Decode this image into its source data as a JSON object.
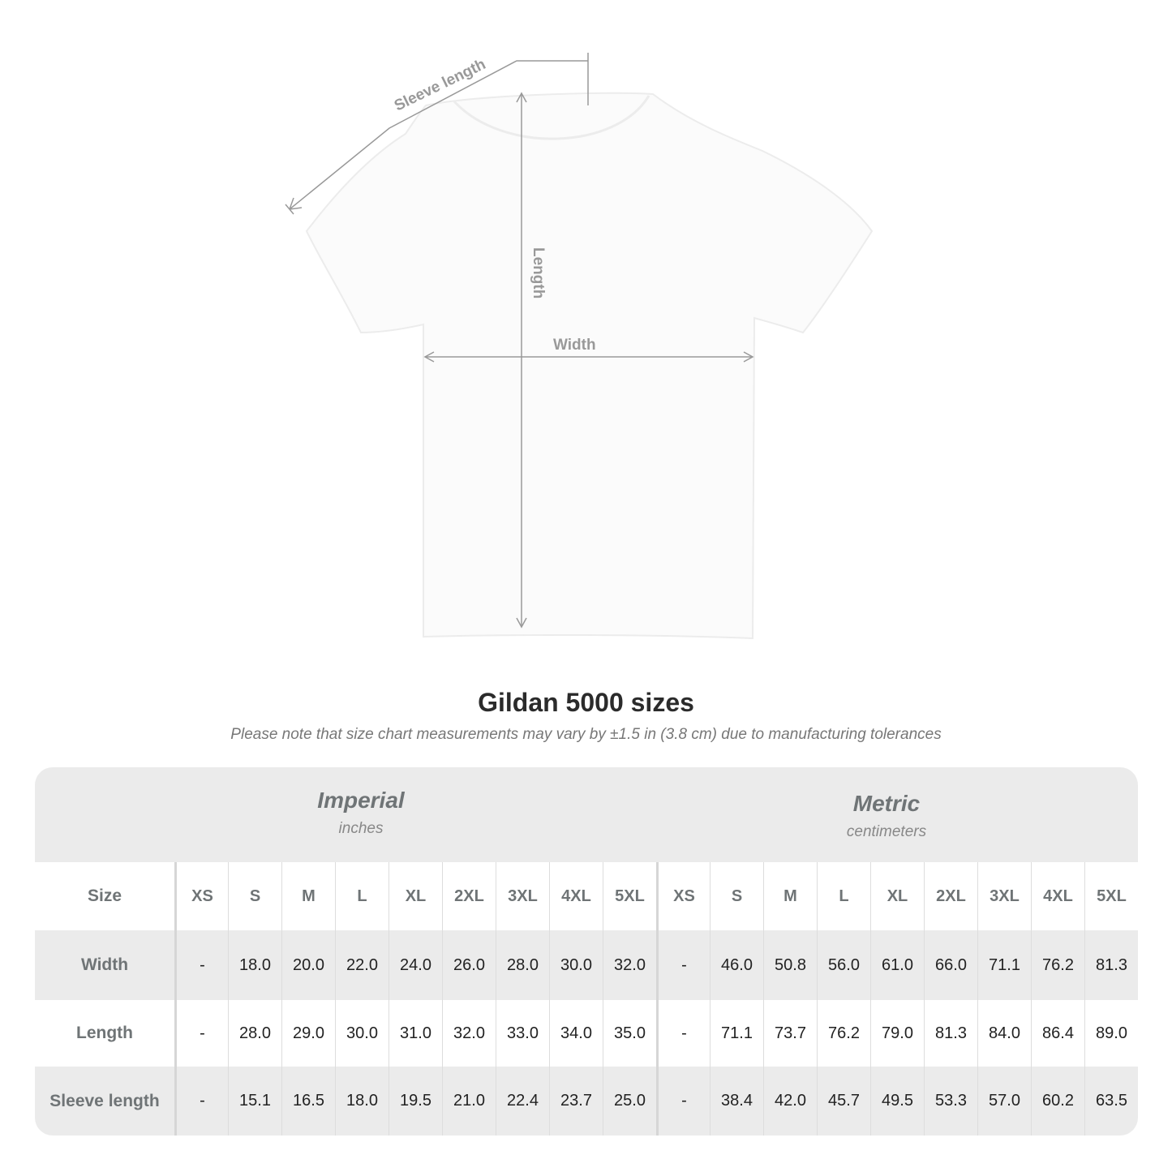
{
  "diagram": {
    "labels": {
      "sleeve": "Sleeve length",
      "length": "Length",
      "width": "Width"
    }
  },
  "title": "Gildan 5000 sizes",
  "note": "Please note that size chart measurements may vary by ±1.5 in (3.8 cm) due to manufacturing tolerances",
  "systems": [
    {
      "name": "Imperial",
      "unit": "inches"
    },
    {
      "name": "Metric",
      "unit": "centimeters"
    }
  ],
  "header_label": "Size",
  "sizes": [
    "XS",
    "S",
    "M",
    "L",
    "XL",
    "2XL",
    "3XL",
    "4XL",
    "5XL"
  ],
  "rows": [
    {
      "label": "Width",
      "imperial": [
        "-",
        "18.0",
        "20.0",
        "22.0",
        "24.0",
        "26.0",
        "28.0",
        "30.0",
        "32.0"
      ],
      "metric": [
        "-",
        "46.0",
        "50.8",
        "56.0",
        "61.0",
        "66.0",
        "71.1",
        "76.2",
        "81.3"
      ]
    },
    {
      "label": "Length",
      "imperial": [
        "-",
        "28.0",
        "29.0",
        "30.0",
        "31.0",
        "32.0",
        "33.0",
        "34.0",
        "35.0"
      ],
      "metric": [
        "-",
        "71.1",
        "73.7",
        "76.2",
        "79.0",
        "81.3",
        "84.0",
        "86.4",
        "89.0"
      ]
    },
    {
      "label": "Sleeve length",
      "imperial": [
        "-",
        "15.1",
        "16.5",
        "18.0",
        "19.5",
        "21.0",
        "22.4",
        "23.7",
        "25.0"
      ],
      "metric": [
        "-",
        "38.4",
        "42.0",
        "45.7",
        "49.5",
        "53.3",
        "57.0",
        "60.2",
        "63.5"
      ]
    }
  ],
  "colors": {
    "header_band": "#ebebeb",
    "label_text": "#6f7476",
    "measure_line": "#999999"
  }
}
